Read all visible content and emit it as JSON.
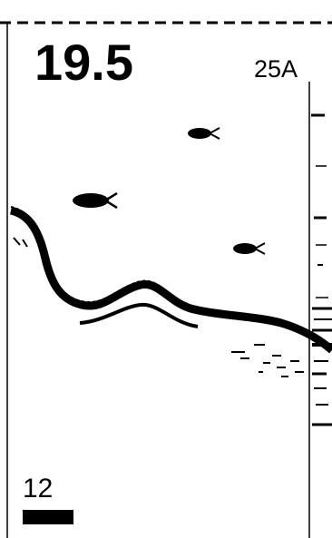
{
  "display": {
    "depth": "19.5",
    "range_label": "25A",
    "scale_label": "12"
  }
}
